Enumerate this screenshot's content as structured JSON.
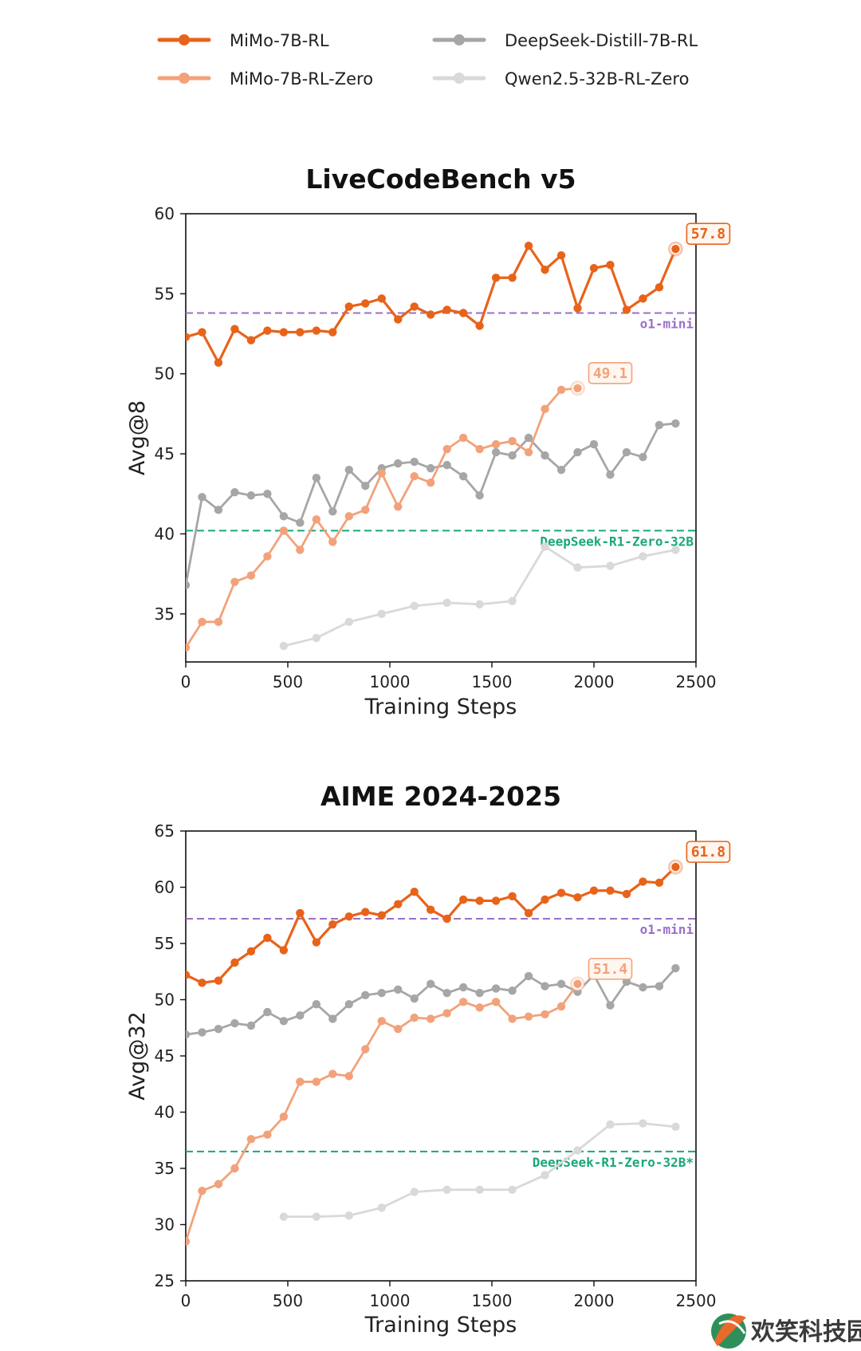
{
  "legend": [
    {
      "name": "MiMo-7B-RL",
      "color": "#e8631a"
    },
    {
      "name": "MiMo-7B-RL-Zero",
      "color": "#f2a27a"
    },
    {
      "name": "DeepSeek-Distill-7B-RL",
      "color": "#a6a6a6"
    },
    {
      "name": "Qwen2.5-32B-RL-Zero",
      "color": "#d9d9d9"
    }
  ],
  "watermark": "欢笑科技园",
  "chart_data": [
    {
      "type": "line",
      "title": "LiveCodeBench v5",
      "xlabel": "Training Steps",
      "ylabel": "Avg@8",
      "xlim": [
        0,
        2500
      ],
      "ylim": [
        32,
        60
      ],
      "xticks": [
        0,
        500,
        1000,
        1500,
        2000,
        2500
      ],
      "yticks": [
        35,
        40,
        45,
        50,
        55,
        60
      ],
      "reference_lines": [
        {
          "label": "o1-mini",
          "y": 53.8,
          "color": "#9b6fc6"
        },
        {
          "label": "DeepSeek-R1-Zero-32B",
          "y": 40.2,
          "color": "#1aa876"
        }
      ],
      "series": [
        {
          "name": "MiMo-7B-RL",
          "color": "#e8631a",
          "end_label": "57.8",
          "x": [
            0,
            80,
            160,
            240,
            320,
            400,
            480,
            560,
            640,
            720,
            800,
            880,
            960,
            1040,
            1120,
            1200,
            1280,
            1360,
            1440,
            1520,
            1600,
            1680,
            1760,
            1840,
            1920,
            2000,
            2080,
            2160,
            2240,
            2320,
            2400
          ],
          "y": [
            52.3,
            52.6,
            50.7,
            52.8,
            52.1,
            52.7,
            52.6,
            52.6,
            52.7,
            52.6,
            54.2,
            54.4,
            54.7,
            53.4,
            54.2,
            53.7,
            54.0,
            53.8,
            53.0,
            56.0,
            56.0,
            58.0,
            56.5,
            57.4,
            54.1,
            56.6,
            56.8,
            54.0,
            54.7,
            55.4,
            57.8
          ]
        },
        {
          "name": "MiMo-7B-RL-Zero",
          "color": "#f2a27a",
          "end_label": "49.1",
          "x": [
            0,
            80,
            160,
            240,
            320,
            400,
            480,
            560,
            640,
            720,
            800,
            880,
            960,
            1040,
            1120,
            1200,
            1280,
            1360,
            1440,
            1520,
            1600,
            1680,
            1760,
            1840,
            1920
          ],
          "y": [
            32.9,
            34.5,
            34.5,
            37.0,
            37.4,
            38.6,
            40.2,
            39.0,
            40.9,
            39.5,
            41.1,
            41.5,
            43.8,
            41.7,
            43.6,
            43.2,
            45.3,
            46.0,
            45.3,
            45.6,
            45.8,
            45.1,
            47.8,
            49.0,
            49.1
          ]
        },
        {
          "name": "DeepSeek-Distill-7B-RL",
          "color": "#a6a6a6",
          "x": [
            0,
            80,
            160,
            240,
            320,
            400,
            480,
            560,
            640,
            720,
            800,
            880,
            960,
            1040,
            1120,
            1200,
            1280,
            1360,
            1440,
            1520,
            1600,
            1680,
            1760,
            1840,
            1920,
            2000,
            2080,
            2160,
            2240,
            2320,
            2400
          ],
          "y": [
            36.8,
            42.3,
            41.5,
            42.6,
            42.4,
            42.5,
            41.1,
            40.7,
            43.5,
            41.4,
            44.0,
            43.0,
            44.1,
            44.4,
            44.5,
            44.1,
            44.3,
            43.6,
            42.4,
            45.1,
            44.9,
            46.0,
            44.9,
            44.0,
            45.1,
            45.6,
            43.7,
            45.1,
            44.8,
            46.8,
            46.9
          ]
        },
        {
          "name": "Qwen2.5-32B-RL-Zero",
          "color": "#d9d9d9",
          "x": [
            480,
            640,
            800,
            960,
            1120,
            1280,
            1440,
            1600,
            1760,
            1920,
            2080,
            2240,
            2400
          ],
          "y": [
            33.0,
            33.5,
            34.5,
            35.0,
            35.5,
            35.7,
            35.6,
            35.8,
            39.2,
            37.9,
            38.0,
            38.6,
            39.0
          ]
        }
      ]
    },
    {
      "type": "line",
      "title": "AIME 2024-2025",
      "xlabel": "Training Steps",
      "ylabel": "Avg@32",
      "xlim": [
        0,
        2500
      ],
      "ylim": [
        25,
        65
      ],
      "xticks": [
        0,
        500,
        1000,
        1500,
        2000,
        2500
      ],
      "yticks": [
        25,
        30,
        35,
        40,
        45,
        50,
        55,
        60,
        65
      ],
      "reference_lines": [
        {
          "label": "o1-mini",
          "y": 57.2,
          "color": "#9b6fc6"
        },
        {
          "label": "DeepSeek-R1-Zero-32B*",
          "y": 36.5,
          "color": "#1aa876"
        }
      ],
      "series": [
        {
          "name": "MiMo-7B-RL",
          "color": "#e8631a",
          "end_label": "61.8",
          "x": [
            0,
            80,
            160,
            240,
            320,
            400,
            480,
            560,
            640,
            720,
            800,
            880,
            960,
            1040,
            1120,
            1200,
            1280,
            1360,
            1440,
            1520,
            1600,
            1680,
            1760,
            1840,
            1920,
            2000,
            2080,
            2160,
            2240,
            2320,
            2400
          ],
          "y": [
            52.2,
            51.5,
            51.7,
            53.3,
            54.3,
            55.5,
            54.4,
            57.7,
            55.1,
            56.7,
            57.4,
            57.8,
            57.5,
            58.5,
            59.6,
            58.0,
            57.2,
            58.9,
            58.8,
            58.8,
            59.2,
            57.7,
            58.9,
            59.5,
            59.1,
            59.7,
            59.7,
            59.4,
            60.5,
            60.4,
            61.8
          ]
        },
        {
          "name": "MiMo-7B-RL-Zero",
          "color": "#f2a27a",
          "end_label": "51.4",
          "x": [
            0,
            80,
            160,
            240,
            320,
            400,
            480,
            560,
            640,
            720,
            800,
            880,
            960,
            1040,
            1120,
            1200,
            1280,
            1360,
            1440,
            1520,
            1600,
            1680,
            1760,
            1840,
            1920
          ],
          "y": [
            28.5,
            33.0,
            33.6,
            35.0,
            37.6,
            38.0,
            39.6,
            42.7,
            42.7,
            43.4,
            43.2,
            45.6,
            48.1,
            47.4,
            48.4,
            48.3,
            48.8,
            49.8,
            49.3,
            49.8,
            48.3,
            48.5,
            48.7,
            49.4,
            51.4
          ]
        },
        {
          "name": "DeepSeek-Distill-7B-RL",
          "color": "#a6a6a6",
          "x": [
            0,
            80,
            160,
            240,
            320,
            400,
            480,
            560,
            640,
            720,
            800,
            880,
            960,
            1040,
            1120,
            1200,
            1280,
            1360,
            1440,
            1520,
            1600,
            1680,
            1760,
            1840,
            1920,
            2000,
            2080,
            2160,
            2240,
            2320,
            2400
          ],
          "y": [
            46.9,
            47.1,
            47.4,
            47.9,
            47.7,
            48.9,
            48.1,
            48.6,
            49.6,
            48.3,
            49.6,
            50.4,
            50.6,
            50.9,
            50.1,
            51.4,
            50.6,
            51.1,
            50.6,
            51.0,
            50.8,
            52.1,
            51.2,
            51.4,
            50.7,
            52.2,
            49.5,
            51.6,
            51.1,
            51.2,
            52.8
          ]
        },
        {
          "name": "Qwen2.5-32B-RL-Zero",
          "color": "#d9d9d9",
          "x": [
            480,
            640,
            800,
            960,
            1120,
            1280,
            1440,
            1600,
            1760,
            1920,
            2080,
            2240,
            2400
          ],
          "y": [
            30.7,
            30.7,
            30.8,
            31.5,
            32.9,
            33.1,
            33.1,
            33.1,
            34.4,
            36.6,
            38.9,
            39.0,
            38.7
          ]
        }
      ]
    }
  ]
}
